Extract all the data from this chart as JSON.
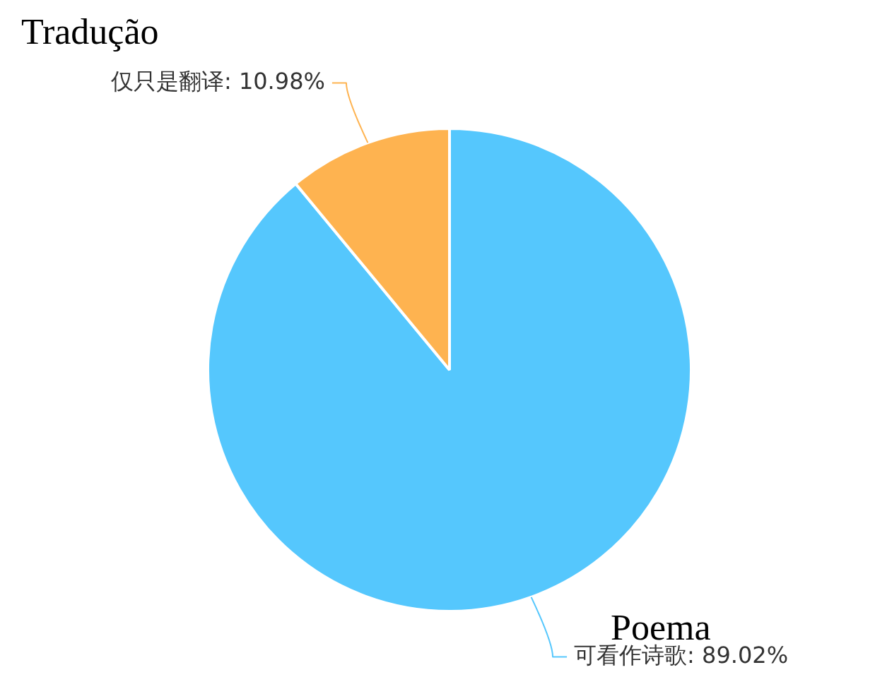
{
  "chart_data": {
    "type": "pie",
    "categories": [
      "可看作诗歌: 89.02%",
      "仅只是翻译: 10.98%"
    ],
    "values": [
      89.02,
      10.98
    ],
    "colors": [
      "#55c7fd",
      "#feb350"
    ],
    "annotations": [
      "Tradução",
      "Poema"
    ],
    "legend": false
  }
}
